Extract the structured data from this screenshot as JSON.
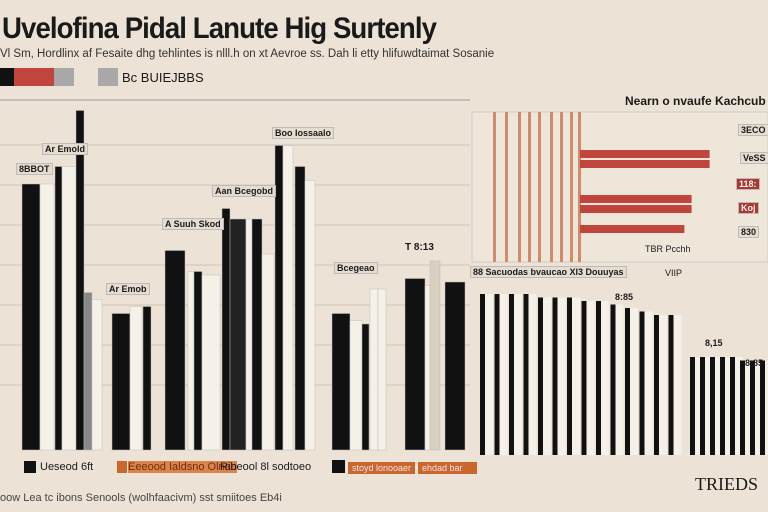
{
  "title": "Uvelofina Pidal Lanute Hig Surtenly",
  "subtitle": "Vl Sm, Hordlinx af Fesaite dhg tehlintes is nlll.h on xt Aevroe ss. Dah li etty hlifuwdtaimat Sosanie",
  "legend_top": {
    "swatch_colors": [
      "#111111",
      "#c0453c",
      "#c0453c",
      "#a8a8a8",
      "#a8a8a8"
    ],
    "label": "Bc BUIEJBBS"
  },
  "right_panel": {
    "title": "Nearn o nvaufe Kachcub",
    "values": [
      "3ECO",
      "VeSS",
      "118:",
      "Koj",
      "830"
    ],
    "footnote": "TBR Pcchh",
    "xlabel": "VIIP"
  },
  "bar_labels": [
    "Ar Emold",
    "8BBOT",
    "Ar Emob",
    "Aan Bcegobd",
    "A Suuh Skod",
    "Bcegeao",
    "Boo Iossaalo",
    "T 8:13",
    "88 Sacuodas bvaucao Xl3 Douuyas",
    "8:85",
    "8,15",
    "8:85"
  ],
  "legend_bottom": [
    {
      "color": "#111111",
      "label": "Ueseod 6ft"
    },
    {
      "color": "#c8682c",
      "label": "Eeeood Ialdsno Olnan",
      "extra": "Ribeool 8l sodtoeo"
    },
    {
      "color": "#111111",
      "label": "stoyd lonooaer",
      "extra": "ehdad bar"
    }
  ],
  "footer": "oow Lea tc ibons Senools (wolhfaacivm) sst smiitoes Eb4i",
  "brand": "TRIEDS",
  "chart_data": {
    "type": "bar",
    "title": "Uvelofina Pidal Lanute Hig Surtenly",
    "ylim": [
      0,
      100
    ],
    "grid": true,
    "bars": [
      [
        "#111",
        76
      ],
      [
        "#f6f1e8",
        76
      ],
      [
        "#111",
        81
      ],
      [
        "#f6f1e8",
        81
      ],
      [
        "#111",
        97
      ],
      [
        "#888",
        45
      ],
      [
        "#f6f1e8",
        43
      ],
      [
        "#111",
        39
      ],
      [
        "#f6f1e8",
        41
      ],
      [
        "#111",
        41
      ],
      [
        "#111",
        57
      ],
      [
        "#f6f1e8",
        51
      ],
      [
        "#111",
        51
      ],
      [
        "#f6f1e8",
        50
      ],
      [
        "#111",
        69
      ],
      [
        "#222",
        66
      ],
      [
        "#f6f1e8",
        66
      ],
      [
        "#111",
        66
      ],
      [
        "#f6f1e8",
        56
      ],
      [
        "#111",
        87
      ],
      [
        "#f6f1e8",
        87
      ],
      [
        "#111",
        81
      ],
      [
        "#f6f1e8",
        77
      ],
      [
        "#111",
        39
      ],
      [
        "#f6f1e8",
        37
      ],
      [
        "#111",
        36
      ],
      [
        "#f6f1e8",
        46
      ],
      [
        "#f6f1e8",
        46
      ],
      [
        "#111",
        49
      ],
      [
        "#f6f1e8",
        47
      ],
      [
        "#d8d0c0",
        54
      ],
      [
        "#111",
        48
      ]
    ],
    "right_bars": [
      46,
      46,
      46,
      46,
      45,
      45,
      45,
      44,
      44,
      43,
      42,
      41,
      40,
      40,
      28,
      28,
      28,
      28,
      28,
      27,
      27,
      27
    ],
    "hbars": [
      72,
      72,
      62,
      62,
      58
    ]
  }
}
